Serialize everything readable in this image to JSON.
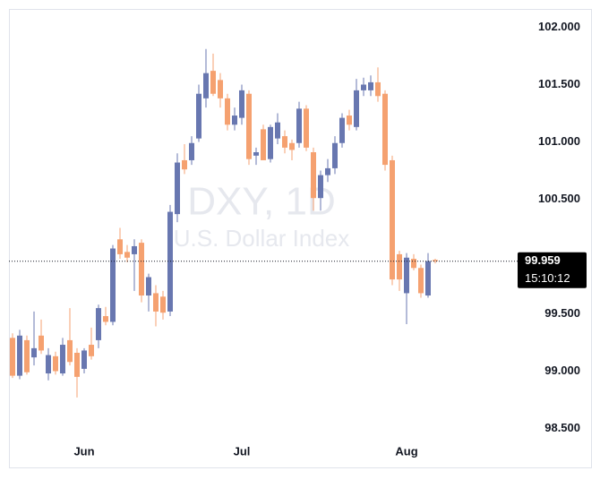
{
  "chart_data": {
    "type": "candlestick",
    "title": "DXY, 1D",
    "subtitle": "U.S. Dollar Index",
    "categories": [
      null,
      null,
      null,
      null,
      null,
      null,
      null,
      null,
      null,
      null,
      "Jun",
      null,
      null,
      null,
      null,
      null,
      null,
      null,
      null,
      null,
      null,
      null,
      null,
      null,
      null,
      null,
      null,
      null,
      null,
      null,
      null,
      null,
      "Jul",
      null,
      null,
      null,
      null,
      null,
      null,
      null,
      null,
      null,
      null,
      null,
      null,
      null,
      null,
      null,
      null,
      null,
      null,
      null,
      null,
      null,
      null,
      "Aug",
      null,
      null,
      null,
      null
    ],
    "open": [
      99.29,
      98.96,
      99.27,
      99.12,
      99.31,
      98.98,
      99.13,
      98.98,
      99.27,
      99.16,
      99.02,
      99.23,
      99.27,
      99.48,
      99.43,
      100.15,
      100.04,
      100.02,
      100.12,
      99.66,
      99.68,
      99.65,
      99.52,
      100.37,
      100.84,
      100.84,
      101.03,
      101.38,
      101.62,
      101.54,
      101.38,
      101.15,
      101.21,
      101.42,
      100.88,
      101.11,
      100.85,
      101.03,
      101.05,
      100.99,
      100.99,
      101.29,
      100.91,
      100.51,
      100.71,
      100.77,
      100.99,
      101.23,
      101.13,
      101.45,
      101.45,
      101.52,
      101.42,
      100.84,
      100.02,
      99.68,
      99.98,
      99.9,
      99.66,
      99.97
    ],
    "high": [
      99.33,
      99.36,
      99.31,
      99.52,
      99.45,
      99.2,
      99.17,
      99.29,
      99.55,
      99.2,
      99.2,
      99.38,
      99.58,
      99.56,
      100.1,
      100.25,
      100.1,
      100.15,
      100.15,
      99.85,
      99.75,
      99.7,
      100.45,
      100.9,
      100.98,
      101.05,
      101.5,
      101.81,
      101.77,
      101.6,
      101.42,
      101.3,
      101.5,
      101.45,
      100.95,
      101.15,
      101.15,
      101.25,
      101.1,
      101.02,
      101.35,
      101.32,
      100.95,
      100.75,
      100.85,
      101.05,
      101.25,
      101.28,
      101.55,
      101.56,
      101.58,
      101.65,
      101.45,
      100.88,
      100.05,
      100.03,
      100.02,
      99.93,
      100.03,
      99.98
    ],
    "low": [
      98.94,
      98.93,
      98.97,
      99.05,
      99.15,
      98.92,
      98.97,
      98.96,
      99.05,
      98.77,
      98.98,
      99.1,
      99.2,
      99.4,
      99.4,
      99.98,
      99.95,
      99.7,
      99.6,
      99.52,
      99.39,
      99.45,
      99.48,
      100.3,
      100.72,
      100.8,
      101.0,
      101.3,
      101.4,
      101.3,
      101.1,
      101.1,
      101.15,
      100.8,
      100.8,
      100.85,
      100.82,
      100.98,
      100.9,
      100.84,
      100.95,
      100.92,
      100.4,
      100.4,
      100.65,
      100.72,
      100.95,
      101.1,
      101.1,
      101.4,
      101.4,
      101.35,
      100.75,
      99.75,
      99.7,
      99.41,
      99.88,
      99.64,
      99.64,
      99.94
    ],
    "close": [
      98.96,
      99.31,
      98.99,
      99.2,
      99.18,
      99.14,
      99.0,
      99.23,
      99.08,
      98.95,
      99.18,
      99.13,
      99.55,
      99.43,
      100.07,
      100.02,
      99.99,
      100.09,
      99.66,
      99.82,
      99.52,
      99.51,
      100.39,
      100.82,
      100.76,
      100.99,
      101.42,
      101.6,
      101.42,
      101.38,
      101.15,
      101.23,
      101.45,
      100.85,
      100.91,
      100.84,
      101.13,
      101.17,
      100.95,
      100.93,
      101.29,
      100.95,
      100.51,
      100.71,
      100.77,
      100.99,
      101.21,
      101.15,
      101.45,
      101.5,
      101.52,
      101.4,
      100.8,
      99.8,
      99.8,
      99.99,
      99.9,
      99.68,
      99.96,
      99.959
    ],
    "up_color": "#6877b0",
    "down_color": "#f5a170",
    "ylim": [
      98.41,
      102.16
    ],
    "yticks": [
      {
        "value": 98.5,
        "label": "98.500"
      },
      {
        "value": 99,
        "label": "99.000"
      },
      {
        "value": 99.5,
        "label": "99.500"
      },
      {
        "value": 100.5,
        "label": "100.500"
      },
      {
        "value": 101,
        "label": "101.000"
      },
      {
        "value": 101.5,
        "label": "101.500"
      },
      {
        "value": 102,
        "label": "102.000"
      }
    ],
    "last_price": 99.959,
    "countdown": "15:10:12",
    "grid": false
  }
}
